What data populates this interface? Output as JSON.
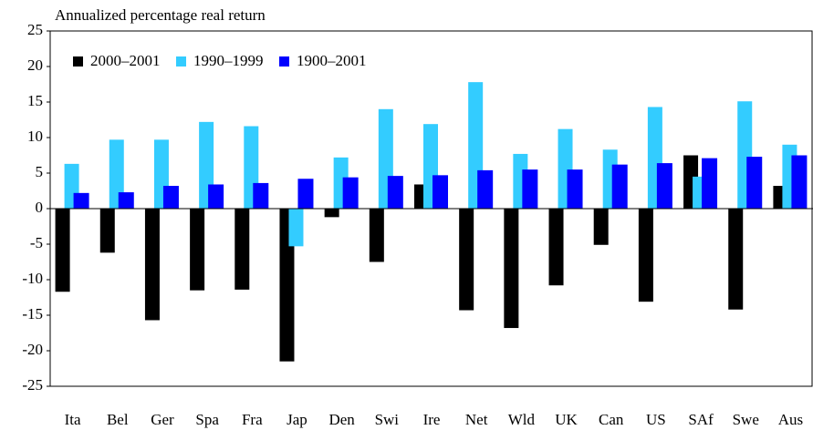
{
  "chart_data": {
    "type": "bar",
    "title": "Annualized percentage real return",
    "categories": [
      "Ita",
      "Bel",
      "Ger",
      "Spa",
      "Fra",
      "Jap",
      "Den",
      "Swi",
      "Ire",
      "Net",
      "Wld",
      "UK",
      "Can",
      "US",
      "SAf",
      "Swe",
      "Aus"
    ],
    "series": [
      {
        "name": "2000–2001",
        "color": "#000000",
        "values": [
          -11.7,
          -6.2,
          -15.7,
          -11.5,
          -11.4,
          -21.5,
          -1.2,
          -7.5,
          3.4,
          -14.3,
          -16.8,
          -10.8,
          -5.1,
          -13.1,
          7.5,
          -14.2,
          3.2
        ]
      },
      {
        "name": "1990–1999",
        "color": "#33ccff",
        "values": [
          6.3,
          9.7,
          9.7,
          12.2,
          11.6,
          -5.3,
          7.2,
          14.0,
          11.9,
          17.8,
          7.7,
          11.2,
          8.3,
          14.3,
          4.5,
          15.1,
          9.0
        ]
      },
      {
        "name": "1900–2001",
        "color": "#0000ff",
        "values": [
          2.2,
          2.3,
          3.2,
          3.4,
          3.6,
          4.2,
          4.4,
          4.6,
          4.7,
          5.4,
          5.5,
          5.5,
          6.2,
          6.4,
          7.1,
          7.3,
          7.5
        ]
      }
    ],
    "ylim": [
      -25,
      25
    ],
    "yticks": [
      -25,
      -20,
      -15,
      -10,
      -5,
      0,
      5,
      10,
      15,
      20,
      25
    ],
    "legend": "top-left"
  }
}
